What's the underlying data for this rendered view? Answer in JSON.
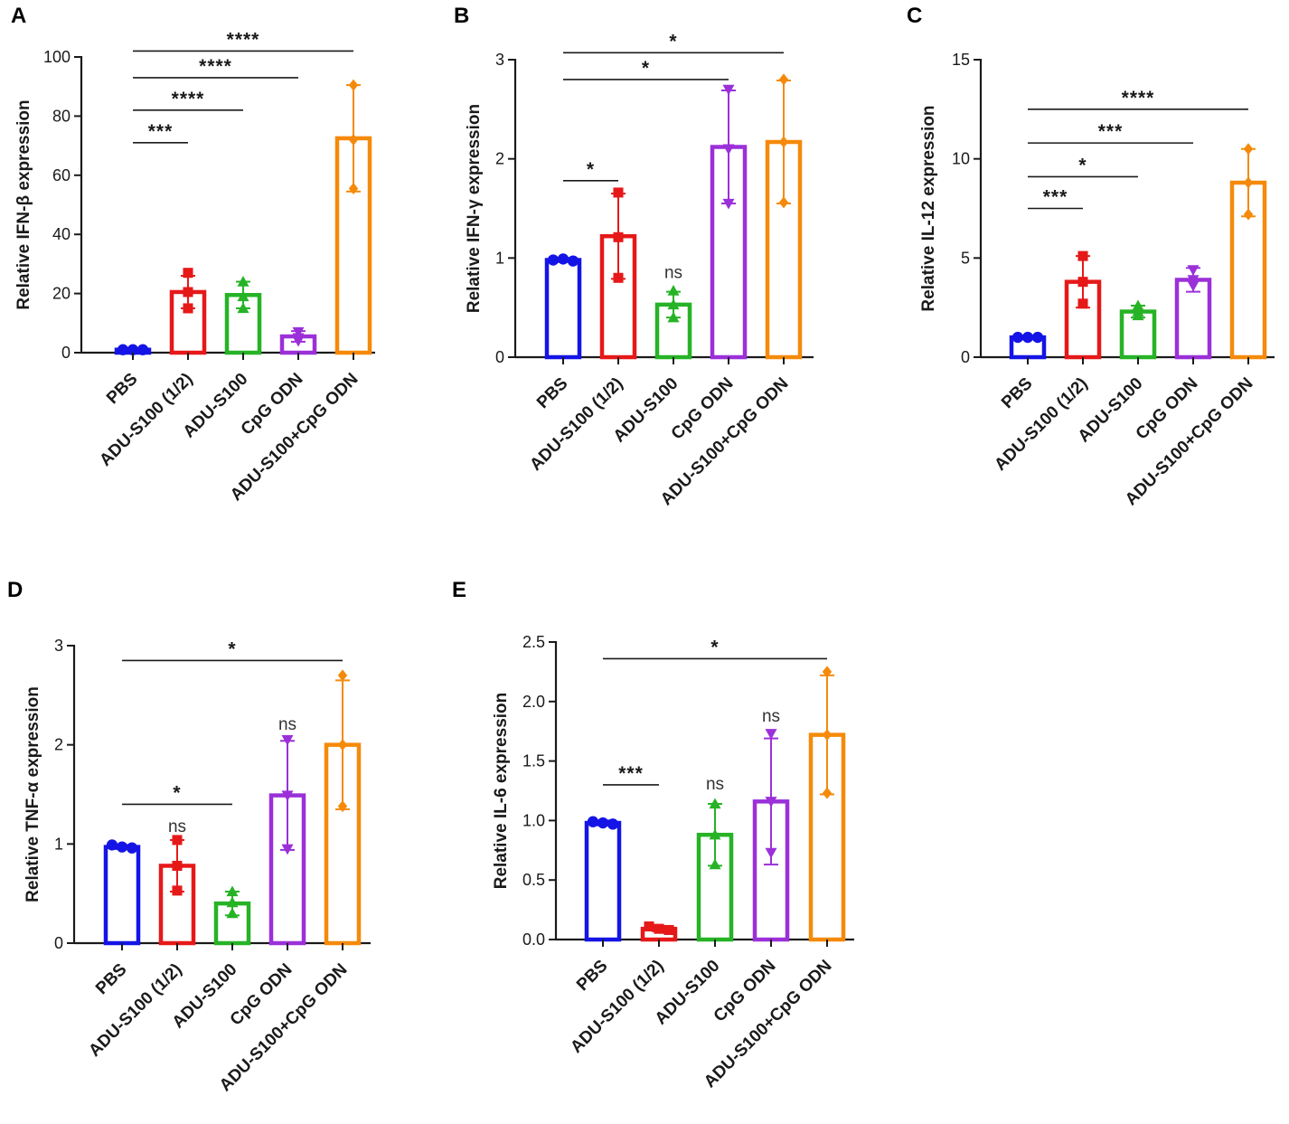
{
  "colors": {
    "PBS": "#1414e6",
    "ADU-S100 (1/2)": "#e61919",
    "ADU-S100": "#26b326",
    "CpG ODN": "#9b30d9",
    "ADU-S100+CpG ODN": "#f58a0a"
  },
  "chart_data": [
    {
      "panel": "A",
      "type": "bar",
      "ylabel": "Relative  IFN-β  expression",
      "ylim": [
        0,
        100
      ],
      "yticks": [
        0,
        20,
        40,
        60,
        80,
        100
      ],
      "categories": [
        "PBS",
        "ADU-S100 (1/2)",
        "ADU-S100",
        "CpG ODN",
        "ADU-S100+CpG ODN"
      ],
      "values": [
        1,
        20.5,
        19.5,
        5.5,
        72.5
      ],
      "errors": [
        0.3,
        5.5,
        4.5,
        1.8,
        18
      ],
      "points": [
        [
          1,
          1,
          1
        ],
        [
          27,
          20.5,
          15
        ],
        [
          24,
          19,
          15
        ],
        [
          7,
          5,
          4
        ],
        [
          90.5,
          72,
          55.5
        ]
      ],
      "markers": [
        "circle",
        "square",
        "triangle-up",
        "triangle-down",
        "diamond"
      ],
      "significance": [
        {
          "from": 0,
          "to": 1,
          "label": "***",
          "y": 71
        },
        {
          "from": 0,
          "to": 2,
          "label": "****",
          "y": 82
        },
        {
          "from": 0,
          "to": 3,
          "label": "****",
          "y": 93
        },
        {
          "from": 0,
          "to": 4,
          "label": "****",
          "y": 102
        }
      ],
      "ns": []
    },
    {
      "panel": "B",
      "type": "bar",
      "ylabel": "Relative IFN-γ expression",
      "ylim": [
        0,
        3
      ],
      "yticks": [
        0,
        1,
        2,
        3
      ],
      "categories": [
        "PBS",
        "ADU-S100 (1/2)",
        "ADU-S100",
        "CpG ODN",
        "ADU-S100+CpG ODN"
      ],
      "values": [
        0.98,
        1.22,
        0.53,
        2.12,
        2.17
      ],
      "errors": [
        0.02,
        0.43,
        0.13,
        0.57,
        0.62
      ],
      "points": [
        [
          0.98,
          0.99,
          0.97
        ],
        [
          1.66,
          1.21,
          0.8
        ],
        [
          0.67,
          0.53,
          0.4
        ],
        [
          2.7,
          2.1,
          1.55
        ],
        [
          2.8,
          2.17,
          1.56
        ]
      ],
      "markers": [
        "circle",
        "square",
        "triangle-up",
        "triangle-down",
        "diamond"
      ],
      "significance": [
        {
          "from": 0,
          "to": 1,
          "label": "*",
          "y": 1.78
        },
        {
          "from": 0,
          "to": 3,
          "label": "*",
          "y": 2.8
        },
        {
          "from": 0,
          "to": 4,
          "label": "*",
          "y": 3.07
        }
      ],
      "ns": [
        {
          "index": 2,
          "label": "ns",
          "y": 0.8
        }
      ]
    },
    {
      "panel": "C",
      "type": "bar",
      "ylabel": "Relative IL-12 expression",
      "ylim": [
        0,
        15
      ],
      "yticks": [
        0,
        5,
        10,
        15
      ],
      "categories": [
        "PBS",
        "ADU-S100 (1/2)",
        "ADU-S100",
        "CpG ODN",
        "ADU-S100+CpG ODN"
      ],
      "values": [
        1,
        3.8,
        2.3,
        3.9,
        8.8
      ],
      "errors": [
        0.05,
        1.3,
        0.3,
        0.6,
        1.7
      ],
      "points": [
        [
          1,
          1,
          1
        ],
        [
          5.1,
          3.8,
          2.7
        ],
        [
          2.6,
          2.3,
          2.1
        ],
        [
          4.4,
          3.9,
          3.6
        ],
        [
          10.5,
          8.8,
          7.2
        ]
      ],
      "markers": [
        "circle",
        "square",
        "triangle-up",
        "triangle-down",
        "diamond"
      ],
      "significance": [
        {
          "from": 0,
          "to": 1,
          "label": "***",
          "y": 7.5
        },
        {
          "from": 0,
          "to": 2,
          "label": "*",
          "y": 9.1
        },
        {
          "from": 0,
          "to": 3,
          "label": "***",
          "y": 10.8
        },
        {
          "from": 0,
          "to": 4,
          "label": "****",
          "y": 12.5
        }
      ],
      "ns": []
    },
    {
      "panel": "D",
      "type": "bar",
      "ylabel": "Relative TNF-α expression",
      "ylim": [
        0,
        3
      ],
      "yticks": [
        0,
        1,
        2,
        3
      ],
      "categories": [
        "PBS",
        "ADU-S100 (1/2)",
        "ADU-S100",
        "CpG ODN",
        "ADU-S100+CpG ODN"
      ],
      "values": [
        0.97,
        0.78,
        0.4,
        1.49,
        2.0
      ],
      "errors": [
        0.02,
        0.26,
        0.12,
        0.55,
        0.65
      ],
      "points": [
        [
          0.99,
          0.97,
          0.96
        ],
        [
          1.04,
          0.78,
          0.53
        ],
        [
          0.52,
          0.41,
          0.3
        ],
        [
          2.05,
          1.49,
          0.95
        ],
        [
          2.7,
          2.0,
          1.38
        ]
      ],
      "markers": [
        "circle",
        "square",
        "triangle-up",
        "triangle-down",
        "diamond"
      ],
      "significance": [
        {
          "from": 0,
          "to": 2,
          "label": "*",
          "y": 1.4
        },
        {
          "from": 0,
          "to": 4,
          "label": "*",
          "y": 2.85
        }
      ],
      "ns": [
        {
          "index": 1,
          "label": "ns",
          "y": 1.12
        },
        {
          "index": 3,
          "label": "ns",
          "y": 2.15
        }
      ]
    },
    {
      "panel": "E",
      "type": "bar",
      "ylabel": "Relative IL-6 expression",
      "ylim": [
        0,
        2.5
      ],
      "yticks": [
        "0.0",
        "0.5",
        "1.0",
        "1.5",
        "2.0",
        "2.5"
      ],
      "categories": [
        "PBS",
        "ADU-S100 (1/2)",
        "ADU-S100",
        "CpG ODN",
        "ADU-S100+CpG ODN"
      ],
      "values": [
        0.98,
        0.09,
        0.88,
        1.16,
        1.72
      ],
      "errors": [
        0.02,
        0.02,
        0.26,
        0.53,
        0.5
      ],
      "points": [
        [
          0.99,
          0.98,
          0.97
        ],
        [
          0.11,
          0.09,
          0.08
        ],
        [
          1.14,
          0.88,
          0.63
        ],
        [
          1.73,
          1.16,
          0.73
        ],
        [
          2.25,
          1.72,
          1.23
        ]
      ],
      "markers": [
        "circle",
        "square",
        "triangle-up",
        "triangle-down",
        "diamond"
      ],
      "significance": [
        {
          "from": 0,
          "to": 1,
          "label": "***",
          "y": 1.3
        },
        {
          "from": 0,
          "to": 4,
          "label": "*",
          "y": 2.36
        }
      ],
      "ns": [
        {
          "index": 2,
          "label": "ns",
          "y": 1.26
        },
        {
          "index": 3,
          "label": "ns",
          "y": 1.83
        }
      ]
    }
  ]
}
